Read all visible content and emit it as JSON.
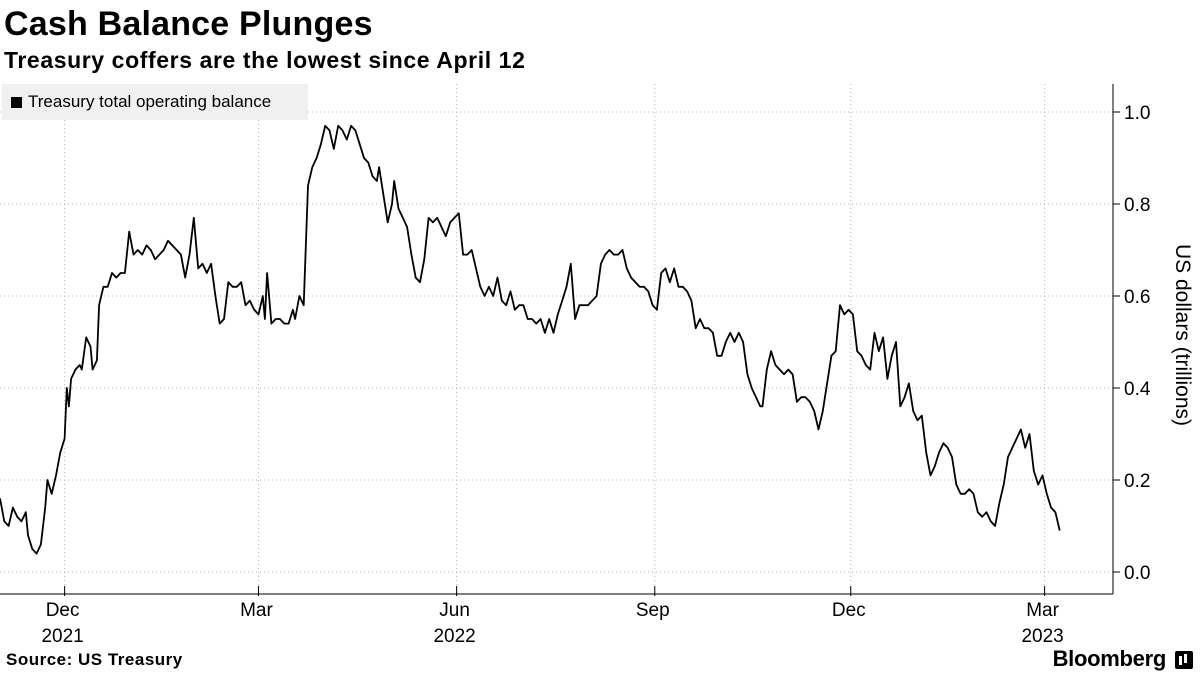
{
  "chart_data": {
    "type": "line",
    "title": "Cash Balance Plunges",
    "subtitle": "Treasury coffers are the lowest since April 12",
    "ylabel": "US dollars (trillions)",
    "ylim": [
      -0.01,
      1.06
    ],
    "yticks": [
      "0.0",
      "0.2",
      "0.4",
      "0.6",
      "0.8",
      "1.0"
    ],
    "xlim": [
      0,
      520
    ],
    "xticks": [
      {
        "label": "Dec",
        "year": "2021",
        "x": 30
      },
      {
        "label": "Mar",
        "year": "",
        "x": 120
      },
      {
        "label": "Jun",
        "year": "2022",
        "x": 212
      },
      {
        "label": "Sep",
        "year": "",
        "x": 304
      },
      {
        "label": "Dec",
        "year": "",
        "x": 395
      },
      {
        "label": "Mar",
        "year": "2023",
        "x": 485
      }
    ],
    "legend_position": "top-left",
    "grid": true,
    "series": [
      {
        "name": "Treasury total operating balance",
        "color": "#000000",
        "points": [
          [
            0,
            0.16
          ],
          [
            2,
            0.11
          ],
          [
            4,
            0.1
          ],
          [
            6,
            0.14
          ],
          [
            8,
            0.12
          ],
          [
            10,
            0.11
          ],
          [
            12,
            0.13
          ],
          [
            13,
            0.08
          ],
          [
            15,
            0.05
          ],
          [
            17,
            0.04
          ],
          [
            19,
            0.06
          ],
          [
            21,
            0.14
          ],
          [
            22,
            0.2
          ],
          [
            24,
            0.17
          ],
          [
            26,
            0.21
          ],
          [
            28,
            0.26
          ],
          [
            30,
            0.29
          ],
          [
            31,
            0.4
          ],
          [
            32,
            0.36
          ],
          [
            33,
            0.42
          ],
          [
            35,
            0.44
          ],
          [
            37,
            0.45
          ],
          [
            38,
            0.44
          ],
          [
            40,
            0.51
          ],
          [
            42,
            0.49
          ],
          [
            43,
            0.44
          ],
          [
            45,
            0.46
          ],
          [
            46,
            0.58
          ],
          [
            48,
            0.62
          ],
          [
            50,
            0.62
          ],
          [
            52,
            0.65
          ],
          [
            54,
            0.64
          ],
          [
            56,
            0.65
          ],
          [
            58,
            0.65
          ],
          [
            60,
            0.74
          ],
          [
            62,
            0.69
          ],
          [
            64,
            0.7
          ],
          [
            66,
            0.69
          ],
          [
            68,
            0.71
          ],
          [
            70,
            0.7
          ],
          [
            72,
            0.68
          ],
          [
            74,
            0.69
          ],
          [
            76,
            0.7
          ],
          [
            78,
            0.72
          ],
          [
            80,
            0.71
          ],
          [
            82,
            0.7
          ],
          [
            84,
            0.69
          ],
          [
            86,
            0.64
          ],
          [
            88,
            0.69
          ],
          [
            90,
            0.77
          ],
          [
            92,
            0.66
          ],
          [
            94,
            0.67
          ],
          [
            96,
            0.65
          ],
          [
            98,
            0.67
          ],
          [
            100,
            0.6
          ],
          [
            102,
            0.54
          ],
          [
            104,
            0.55
          ],
          [
            106,
            0.63
          ],
          [
            108,
            0.62
          ],
          [
            110,
            0.62
          ],
          [
            112,
            0.63
          ],
          [
            114,
            0.58
          ],
          [
            116,
            0.59
          ],
          [
            118,
            0.57
          ],
          [
            120,
            0.56
          ],
          [
            122,
            0.6
          ],
          [
            123,
            0.55
          ],
          [
            124,
            0.65
          ],
          [
            126,
            0.54
          ],
          [
            128,
            0.55
          ],
          [
            130,
            0.55
          ],
          [
            132,
            0.54
          ],
          [
            134,
            0.54
          ],
          [
            136,
            0.57
          ],
          [
            137,
            0.55
          ],
          [
            139,
            0.6
          ],
          [
            141,
            0.58
          ],
          [
            143,
            0.84
          ],
          [
            145,
            0.88
          ],
          [
            147,
            0.9
          ],
          [
            149,
            0.93
          ],
          [
            151,
            0.97
          ],
          [
            153,
            0.96
          ],
          [
            155,
            0.92
          ],
          [
            157,
            0.97
          ],
          [
            159,
            0.96
          ],
          [
            161,
            0.94
          ],
          [
            163,
            0.97
          ],
          [
            165,
            0.96
          ],
          [
            167,
            0.93
          ],
          [
            169,
            0.9
          ],
          [
            171,
            0.89
          ],
          [
            173,
            0.86
          ],
          [
            175,
            0.85
          ],
          [
            176,
            0.88
          ],
          [
            178,
            0.82
          ],
          [
            180,
            0.76
          ],
          [
            182,
            0.8
          ],
          [
            183,
            0.85
          ],
          [
            185,
            0.79
          ],
          [
            187,
            0.77
          ],
          [
            189,
            0.75
          ],
          [
            191,
            0.69
          ],
          [
            193,
            0.64
          ],
          [
            195,
            0.63
          ],
          [
            197,
            0.68
          ],
          [
            199,
            0.77
          ],
          [
            201,
            0.76
          ],
          [
            203,
            0.77
          ],
          [
            205,
            0.75
          ],
          [
            207,
            0.73
          ],
          [
            209,
            0.76
          ],
          [
            211,
            0.77
          ],
          [
            213,
            0.78
          ],
          [
            215,
            0.69
          ],
          [
            217,
            0.69
          ],
          [
            219,
            0.7
          ],
          [
            221,
            0.66
          ],
          [
            223,
            0.62
          ],
          [
            225,
            0.6
          ],
          [
            227,
            0.62
          ],
          [
            229,
            0.6
          ],
          [
            231,
            0.64
          ],
          [
            233,
            0.59
          ],
          [
            235,
            0.58
          ],
          [
            237,
            0.61
          ],
          [
            239,
            0.57
          ],
          [
            241,
            0.58
          ],
          [
            243,
            0.58
          ],
          [
            245,
            0.55
          ],
          [
            247,
            0.55
          ],
          [
            249,
            0.54
          ],
          [
            251,
            0.55
          ],
          [
            253,
            0.52
          ],
          [
            255,
            0.55
          ],
          [
            257,
            0.52
          ],
          [
            259,
            0.56
          ],
          [
            261,
            0.59
          ],
          [
            263,
            0.62
          ],
          [
            265,
            0.67
          ],
          [
            267,
            0.55
          ],
          [
            269,
            0.58
          ],
          [
            271,
            0.58
          ],
          [
            273,
            0.58
          ],
          [
            275,
            0.59
          ],
          [
            277,
            0.6
          ],
          [
            279,
            0.67
          ],
          [
            281,
            0.69
          ],
          [
            283,
            0.7
          ],
          [
            285,
            0.69
          ],
          [
            287,
            0.69
          ],
          [
            289,
            0.7
          ],
          [
            291,
            0.66
          ],
          [
            293,
            0.64
          ],
          [
            295,
            0.63
          ],
          [
            297,
            0.62
          ],
          [
            299,
            0.62
          ],
          [
            301,
            0.61
          ],
          [
            303,
            0.58
          ],
          [
            305,
            0.57
          ],
          [
            307,
            0.65
          ],
          [
            309,
            0.66
          ],
          [
            311,
            0.63
          ],
          [
            313,
            0.66
          ],
          [
            315,
            0.62
          ],
          [
            317,
            0.62
          ],
          [
            319,
            0.61
          ],
          [
            321,
            0.59
          ],
          [
            323,
            0.53
          ],
          [
            325,
            0.55
          ],
          [
            327,
            0.53
          ],
          [
            329,
            0.53
          ],
          [
            331,
            0.52
          ],
          [
            333,
            0.47
          ],
          [
            335,
            0.47
          ],
          [
            337,
            0.5
          ],
          [
            339,
            0.52
          ],
          [
            341,
            0.5
          ],
          [
            343,
            0.52
          ],
          [
            345,
            0.5
          ],
          [
            347,
            0.43
          ],
          [
            349,
            0.4
          ],
          [
            351,
            0.38
          ],
          [
            353,
            0.36
          ],
          [
            354,
            0.36
          ],
          [
            356,
            0.44
          ],
          [
            358,
            0.48
          ],
          [
            360,
            0.45
          ],
          [
            362,
            0.44
          ],
          [
            364,
            0.43
          ],
          [
            366,
            0.44
          ],
          [
            368,
            0.43
          ],
          [
            370,
            0.37
          ],
          [
            372,
            0.38
          ],
          [
            374,
            0.38
          ],
          [
            376,
            0.37
          ],
          [
            378,
            0.35
          ],
          [
            380,
            0.31
          ],
          [
            382,
            0.35
          ],
          [
            384,
            0.41
          ],
          [
            386,
            0.47
          ],
          [
            388,
            0.48
          ],
          [
            390,
            0.58
          ],
          [
            392,
            0.56
          ],
          [
            394,
            0.57
          ],
          [
            396,
            0.56
          ],
          [
            398,
            0.48
          ],
          [
            400,
            0.47
          ],
          [
            402,
            0.45
          ],
          [
            404,
            0.44
          ],
          [
            406,
            0.52
          ],
          [
            408,
            0.48
          ],
          [
            410,
            0.51
          ],
          [
            412,
            0.42
          ],
          [
            414,
            0.47
          ],
          [
            416,
            0.5
          ],
          [
            418,
            0.36
          ],
          [
            420,
            0.38
          ],
          [
            422,
            0.41
          ],
          [
            424,
            0.35
          ],
          [
            426,
            0.33
          ],
          [
            428,
            0.34
          ],
          [
            430,
            0.26
          ],
          [
            432,
            0.21
          ],
          [
            434,
            0.23
          ],
          [
            436,
            0.26
          ],
          [
            438,
            0.28
          ],
          [
            440,
            0.27
          ],
          [
            442,
            0.25
          ],
          [
            444,
            0.19
          ],
          [
            446,
            0.17
          ],
          [
            448,
            0.17
          ],
          [
            450,
            0.18
          ],
          [
            452,
            0.17
          ],
          [
            454,
            0.13
          ],
          [
            456,
            0.12
          ],
          [
            458,
            0.13
          ],
          [
            460,
            0.11
          ],
          [
            462,
            0.1
          ],
          [
            464,
            0.15
          ],
          [
            466,
            0.19
          ],
          [
            468,
            0.25
          ],
          [
            470,
            0.27
          ],
          [
            472,
            0.29
          ],
          [
            474,
            0.31
          ],
          [
            476,
            0.27
          ],
          [
            478,
            0.3
          ],
          [
            480,
            0.22
          ],
          [
            482,
            0.19
          ],
          [
            484,
            0.21
          ],
          [
            486,
            0.17
          ],
          [
            488,
            0.14
          ],
          [
            490,
            0.13
          ],
          [
            492,
            0.09
          ]
        ]
      }
    ]
  },
  "footer": {
    "source": "Source: US Treasury",
    "brand": "Bloomberg"
  }
}
